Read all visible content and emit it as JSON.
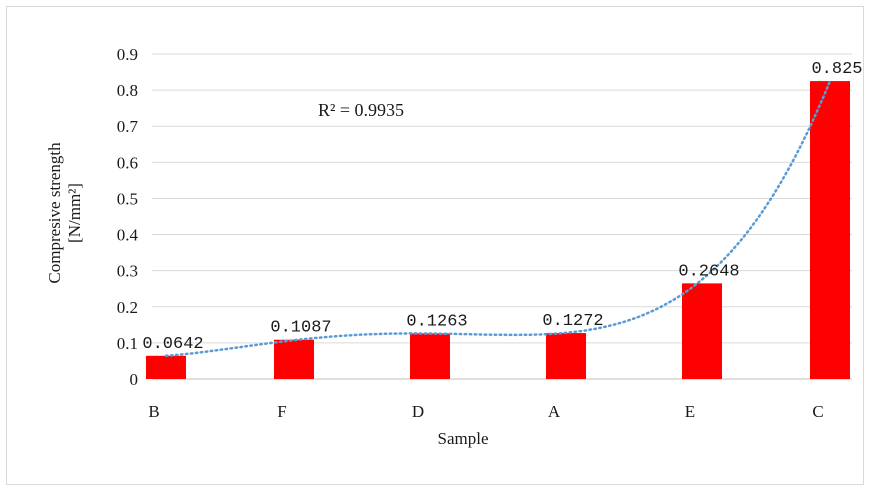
{
  "chart_data": {
    "type": "bar",
    "categories": [
      "B",
      "F",
      "D",
      "A",
      "E",
      "C"
    ],
    "values": [
      0.0642,
      0.1087,
      0.1263,
      0.1272,
      0.2648,
      0.825
    ],
    "data_labels": [
      "0.0642",
      "0.1087",
      "0.1263",
      "0.1272",
      "0.2648",
      "0.825"
    ],
    "xlabel": "Sample",
    "ylabel_lines": [
      "Compresive strength",
      "[N/mm²]"
    ],
    "ylim": [
      0,
      0.9
    ],
    "yticks": [
      "0",
      "0.1",
      "0.2",
      "0.3",
      "0.4",
      "0.5",
      "0.6",
      "0.7",
      "0.8",
      "0.9"
    ],
    "ytick_values": [
      0,
      0.1,
      0.2,
      0.3,
      0.4,
      0.5,
      0.6,
      0.7,
      0.8,
      0.9
    ],
    "grid": true,
    "bar_color": "#ff0000",
    "trendline": {
      "type": "polynomial",
      "style": "dotted",
      "color": "#5b9bd5",
      "r2_label": "R² = 0.9935"
    }
  }
}
